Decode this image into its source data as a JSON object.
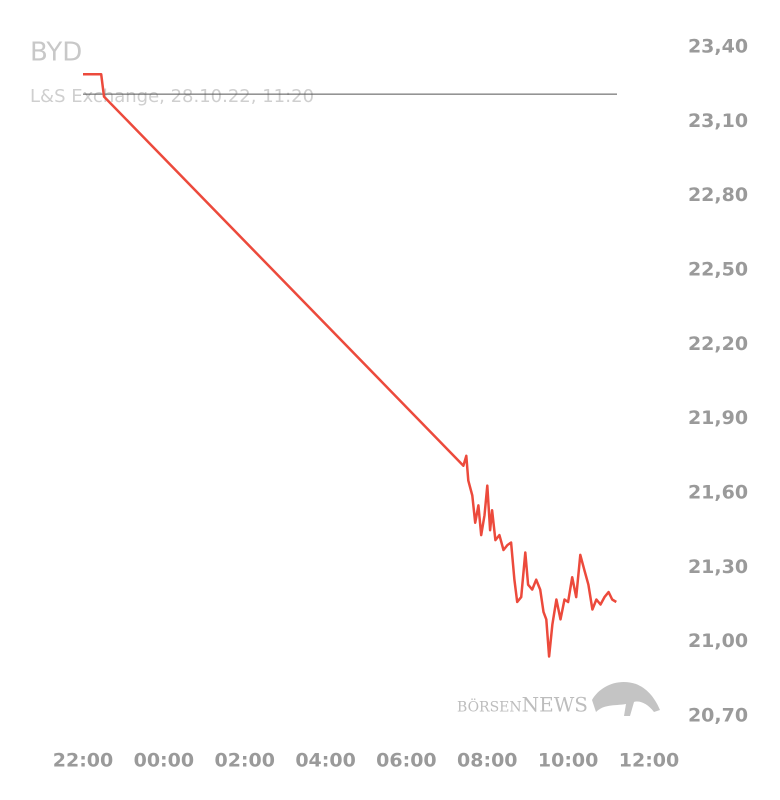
{
  "chart_data": {
    "type": "line",
    "title": "BYD",
    "subtitle": "L&S Exchange, 28.10.22, 11:20",
    "watermark": "börsenNEWS",
    "series": [
      {
        "name": "BYD",
        "color": "#ec4a3c",
        "x": [
          22,
          22.45,
          22.52,
          31.41,
          31.48,
          31.53,
          31.63,
          31.7,
          31.78,
          31.85,
          31.93,
          32.0,
          32.07,
          32.12,
          32.2,
          32.3,
          32.4,
          32.5,
          32.59,
          32.67,
          32.74,
          32.84,
          32.94,
          33.01,
          33.11,
          33.21,
          33.31,
          33.39,
          33.46,
          33.53,
          33.61,
          33.71,
          33.81,
          33.91,
          34.0,
          34.1,
          34.2,
          34.3,
          34.4,
          34.5,
          34.6,
          34.7,
          34.8,
          34.9,
          35.0,
          35.09,
          35.19
        ],
        "values": [
          23.29,
          23.29,
          23.2,
          21.71,
          21.75,
          21.65,
          21.59,
          21.48,
          21.55,
          21.43,
          21.51,
          21.63,
          21.45,
          21.53,
          21.41,
          21.43,
          21.37,
          21.39,
          21.4,
          21.25,
          21.16,
          21.18,
          21.36,
          21.23,
          21.21,
          21.25,
          21.21,
          21.12,
          21.09,
          20.94,
          21.07,
          21.17,
          21.09,
          21.17,
          21.16,
          21.26,
          21.18,
          21.35,
          21.29,
          21.23,
          21.13,
          21.17,
          21.15,
          21.18,
          21.2,
          21.17,
          21.16
        ]
      }
    ],
    "reference_value": 23.21,
    "xlim": [
      22,
      36
    ],
    "xticks": [
      {
        "value": 22,
        "label": "22:00"
      },
      {
        "value": 24,
        "label": "00:00"
      },
      {
        "value": 26,
        "label": "02:00"
      },
      {
        "value": 28,
        "label": "04:00"
      },
      {
        "value": 30,
        "label": "06:00"
      },
      {
        "value": 32,
        "label": "08:00"
      },
      {
        "value": 34,
        "label": "10:00"
      },
      {
        "value": 36,
        "label": "12:00"
      }
    ],
    "ylim": [
      20.7,
      23.4
    ],
    "yticks": [
      {
        "value": 23.4,
        "label": "23,40"
      },
      {
        "value": 23.1,
        "label": "23,10"
      },
      {
        "value": 22.8,
        "label": "22,80"
      },
      {
        "value": 22.5,
        "label": "22,50"
      },
      {
        "value": 22.2,
        "label": "22,20"
      },
      {
        "value": 21.9,
        "label": "21,90"
      },
      {
        "value": 21.6,
        "label": "21,60"
      },
      {
        "value": 21.3,
        "label": "21,30"
      },
      {
        "value": 21.0,
        "label": "21,00"
      },
      {
        "value": 20.7,
        "label": "20,70"
      }
    ],
    "grid": false
  }
}
